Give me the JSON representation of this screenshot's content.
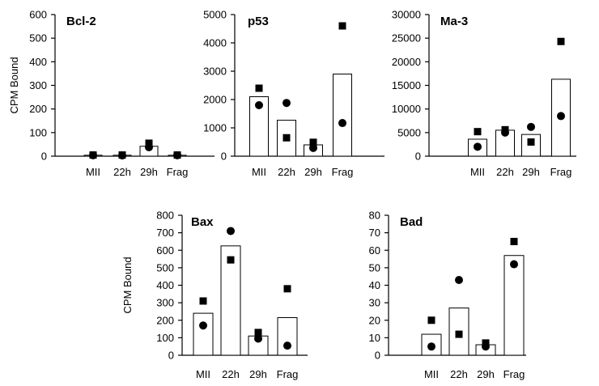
{
  "chart_data": [
    {
      "type": "bar",
      "title": "Bcl-2",
      "ylabel": "CPM Bound",
      "categories": [
        "MII",
        "22h",
        "29h",
        "Frag"
      ],
      "ylim": [
        0,
        600
      ],
      "yticks": [
        0,
        100,
        200,
        300,
        400,
        500,
        600
      ],
      "series": [
        {
          "values": [
            4,
            4,
            42,
            4
          ]
        },
        {
          "marker": "circle",
          "values": [
            4,
            3,
            38,
            4
          ]
        },
        {
          "marker": "square",
          "values": [
            5,
            5,
            55,
            5
          ]
        }
      ]
    },
    {
      "type": "bar",
      "title": "p53",
      "ylabel": "",
      "categories": [
        "MII",
        "22h",
        "29h",
        "Frag"
      ],
      "ylim": [
        0,
        5000
      ],
      "yticks": [
        0,
        1000,
        2000,
        3000,
        4000,
        5000
      ],
      "series": [
        {
          "values": [
            2100,
            1270,
            400,
            2900
          ]
        },
        {
          "marker": "circle",
          "values": [
            1800,
            1880,
            290,
            1170
          ]
        },
        {
          "marker": "square",
          "values": [
            2400,
            650,
            490,
            4600
          ]
        }
      ]
    },
    {
      "type": "bar",
      "title": "Ma-3",
      "ylabel": "",
      "categories": [
        "MII",
        "22h",
        "29h",
        "Frag"
      ],
      "ylim": [
        0,
        30000
      ],
      "yticks": [
        0,
        5000,
        10000,
        15000,
        20000,
        25000,
        30000
      ],
      "series": [
        {
          "values": [
            3600,
            5500,
            4600,
            16300
          ]
        },
        {
          "marker": "circle",
          "values": [
            2000,
            5000,
            6200,
            8500
          ]
        },
        {
          "marker": "square",
          "values": [
            5200,
            5600,
            3000,
            24300
          ]
        }
      ]
    },
    {
      "type": "bar",
      "title": "Bax",
      "ylabel": "CPM Bound",
      "categories": [
        "MII",
        "22h",
        "29h",
        "Frag"
      ],
      "ylim": [
        0,
        800
      ],
      "yticks": [
        0,
        100,
        200,
        300,
        400,
        500,
        600,
        700,
        800
      ],
      "series": [
        {
          "values": [
            240,
            625,
            110,
            215
          ]
        },
        {
          "marker": "circle",
          "values": [
            170,
            710,
            95,
            55
          ]
        },
        {
          "marker": "square",
          "values": [
            310,
            545,
            130,
            380
          ]
        }
      ]
    },
    {
      "type": "bar",
      "title": "Bad",
      "ylabel": "",
      "categories": [
        "MII",
        "22h",
        "29h",
        "Frag"
      ],
      "ylim": [
        0,
        80
      ],
      "yticks": [
        0,
        10,
        20,
        30,
        40,
        50,
        60,
        70,
        80
      ],
      "series": [
        {
          "values": [
            12,
            27,
            6,
            57
          ]
        },
        {
          "marker": "circle",
          "values": [
            5,
            43,
            5,
            52
          ]
        },
        {
          "marker": "square",
          "values": [
            20,
            12,
            7,
            65
          ]
        }
      ]
    }
  ]
}
